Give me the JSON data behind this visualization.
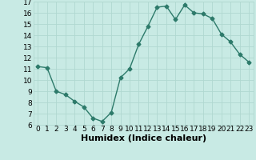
{
  "xlabel": "Humidex (Indice chaleur)",
  "x": [
    0,
    1,
    2,
    3,
    4,
    5,
    6,
    7,
    8,
    9,
    10,
    11,
    12,
    13,
    14,
    15,
    16,
    17,
    18,
    19,
    20,
    21,
    22,
    23
  ],
  "y": [
    11.2,
    11.1,
    9.0,
    8.7,
    8.1,
    7.6,
    6.6,
    6.3,
    7.1,
    10.2,
    11.0,
    13.2,
    14.8,
    16.5,
    16.6,
    15.4,
    16.7,
    16.0,
    15.9,
    15.5,
    14.1,
    13.4,
    12.3,
    11.6
  ],
  "line_color": "#2d7a6a",
  "bg_color": "#c8eae4",
  "grid_color": "#b0d8d0",
  "ylim": [
    6,
    17
  ],
  "yticks": [
    6,
    7,
    8,
    9,
    10,
    11,
    12,
    13,
    14,
    15,
    16,
    17
  ],
  "xticks": [
    0,
    1,
    2,
    3,
    4,
    5,
    6,
    7,
    8,
    9,
    10,
    11,
    12,
    13,
    14,
    15,
    16,
    17,
    18,
    19,
    20,
    21,
    22,
    23
  ],
  "tick_fontsize": 6.5,
  "xlabel_fontsize": 8,
  "marker": "D",
  "marker_size": 2.5,
  "line_width": 1.0
}
